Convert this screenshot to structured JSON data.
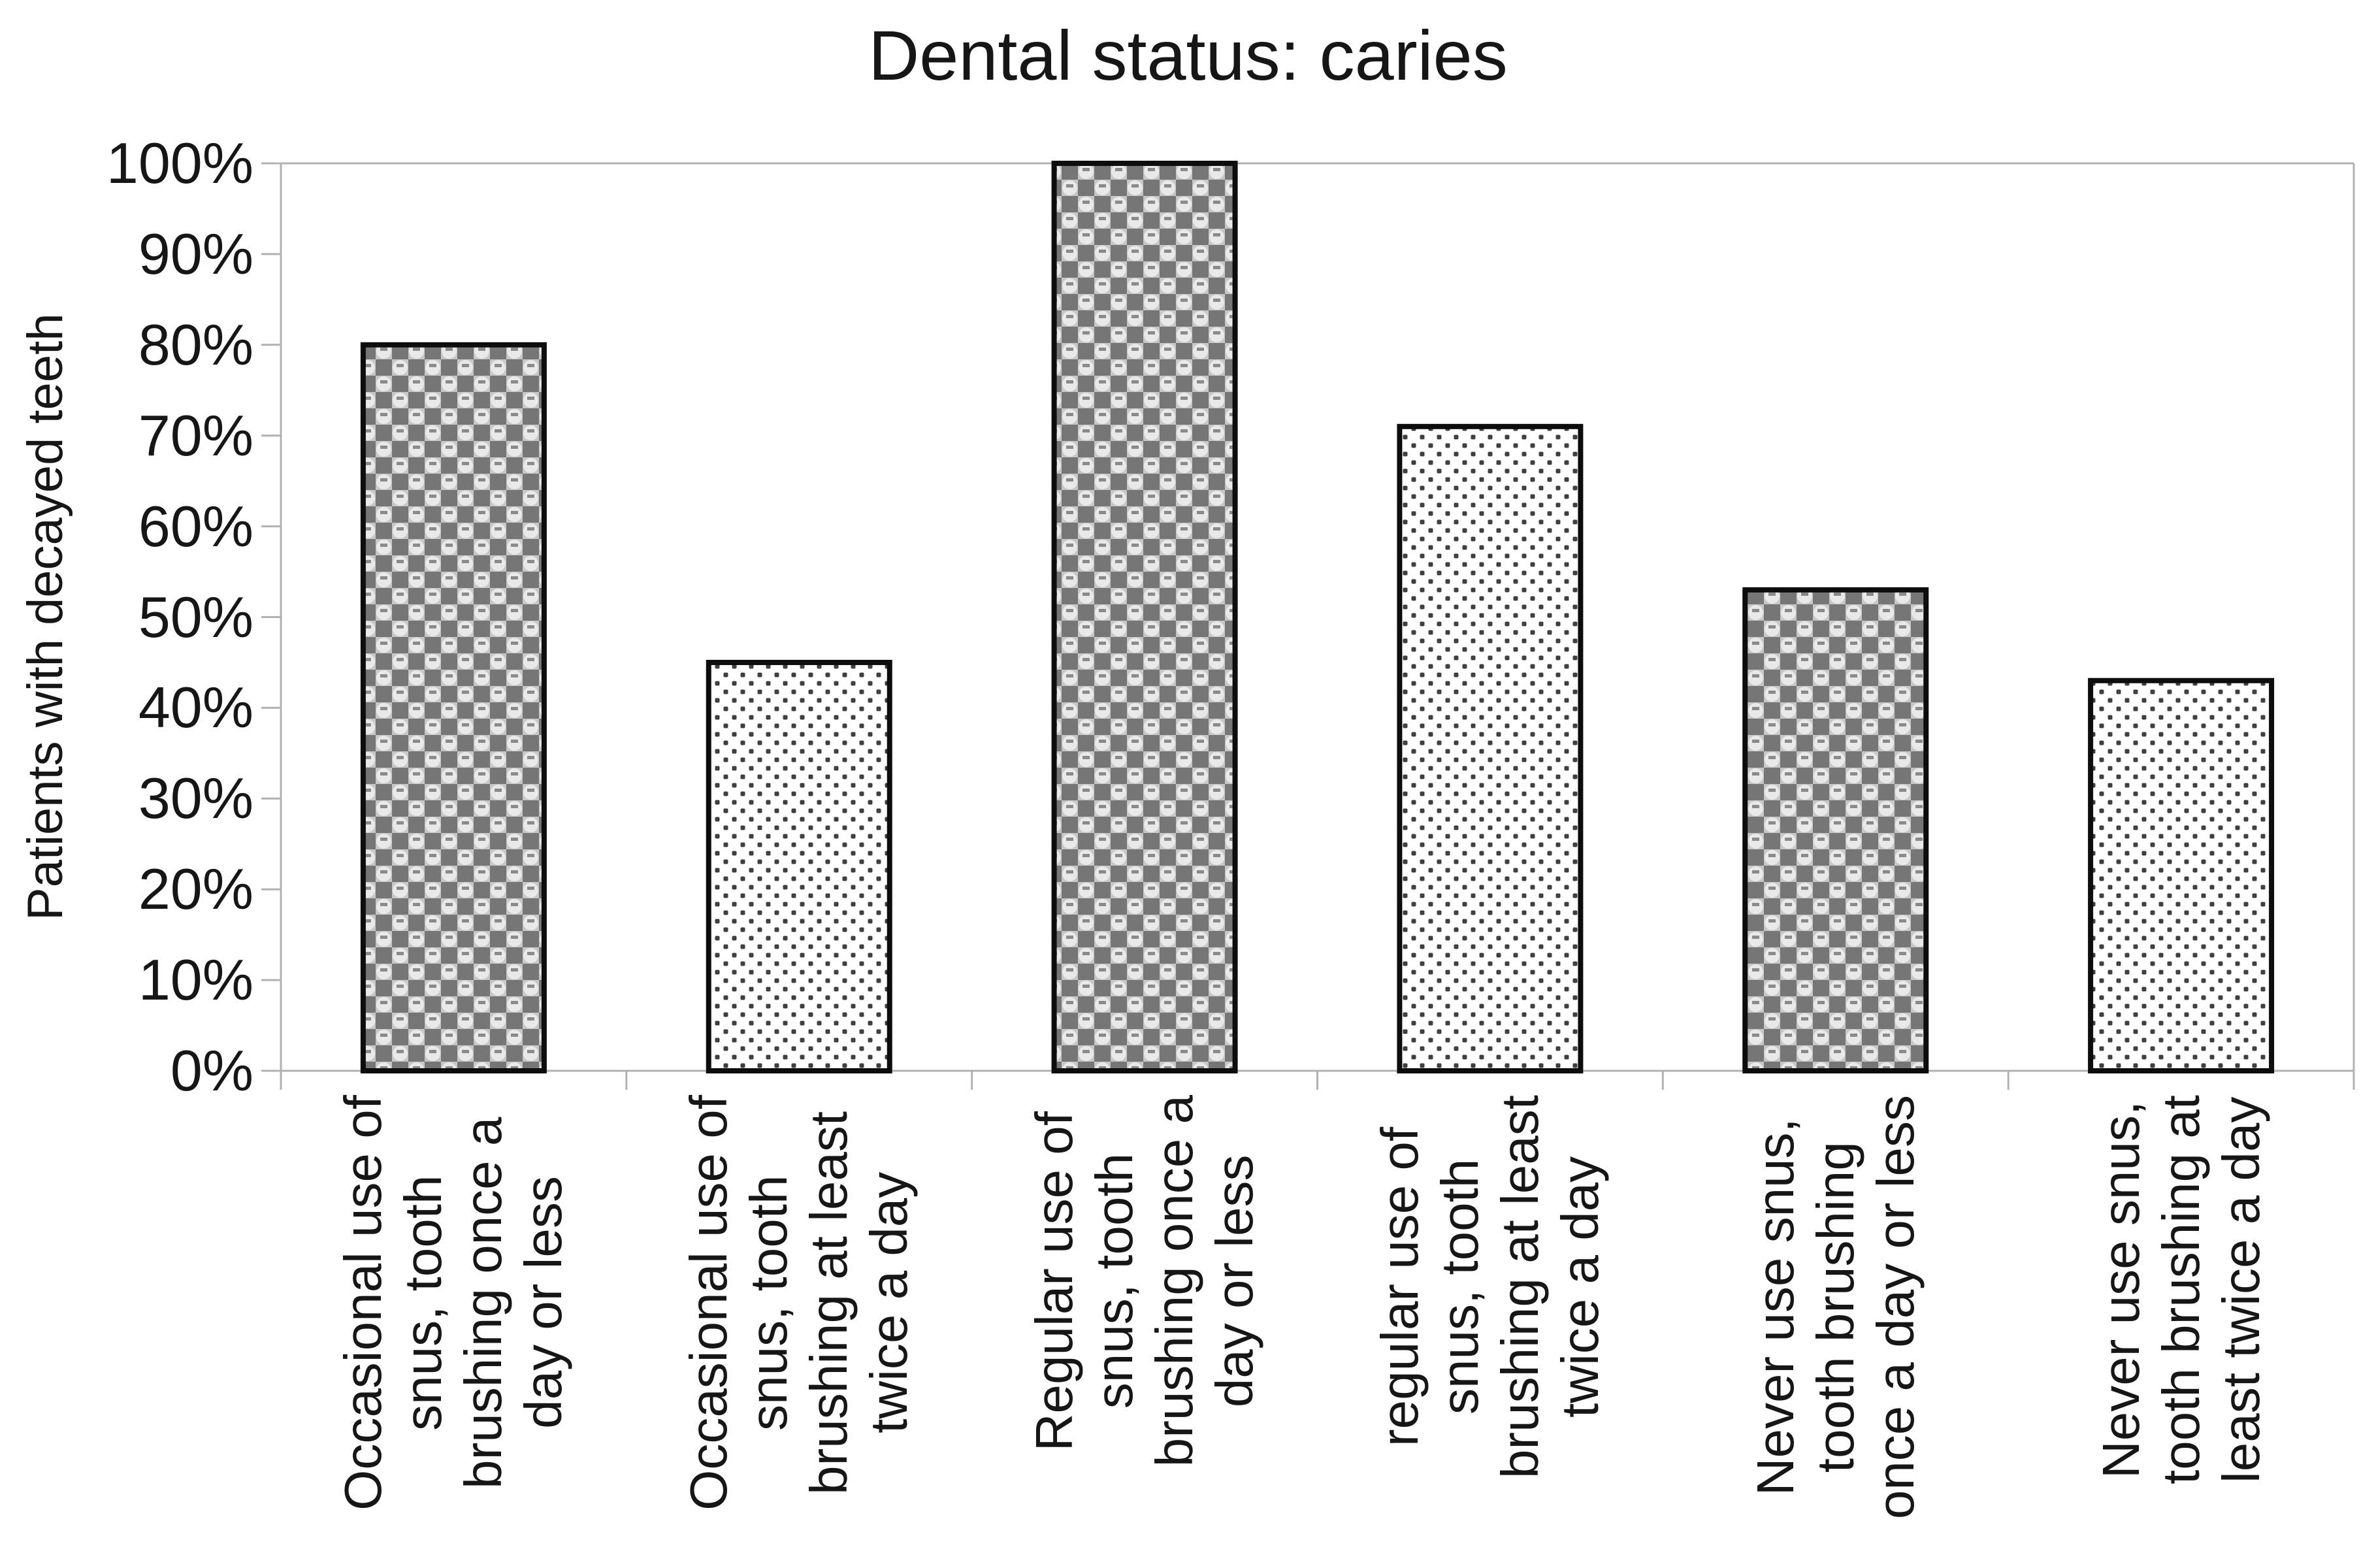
{
  "chart_data": {
    "type": "bar",
    "title": "Dental status: caries",
    "xlabel": "",
    "ylabel": "Patients with decayed teeth",
    "ylim": [
      0,
      100
    ],
    "ytick_step": 10,
    "ytick_labels": [
      "0%",
      "10%",
      "20%",
      "30%",
      "40%",
      "50%",
      "60%",
      "70%",
      "80%",
      "90%",
      "100%"
    ],
    "categories": [
      "Occasional use of snus, tooth brushing once a day or less",
      "Occasional use of snus, tooth brushing at least twice a day",
      "Regular use of snus, tooth brushing once a day or less",
      "regular use of snus, tooth brushing at least twice a day",
      "Never use snus, tooth brushing once a day or less",
      "Never use snus, tooth brushing at least twice a day"
    ],
    "category_lines": [
      [
        "Occasional use of",
        "snus, tooth",
        "brushing once a",
        "day or less"
      ],
      [
        "Occasional use of",
        "snus, tooth",
        "brushing at least",
        "twice a day"
      ],
      [
        "Regular use of",
        "snus, tooth",
        "brushing once a",
        "day or less"
      ],
      [
        "regular use of",
        "snus, tooth",
        "brushing at least",
        "twice a day"
      ],
      [
        "Never use snus,",
        "tooth brushing",
        "once a day or less"
      ],
      [
        "Never use snus,",
        "tooth brushing at",
        "least twice a day"
      ]
    ],
    "values": [
      80,
      45,
      100,
      71,
      53,
      43
    ],
    "bar_patterns": [
      "checker",
      "dots",
      "checker",
      "dots",
      "checker",
      "dots"
    ],
    "grid": false,
    "legend_visible": false,
    "plot_frame": "top and right light-gray border, left and bottom light-gray axes with outside ticks"
  },
  "colors": {
    "background": "#ffffff",
    "text": "#161616",
    "axis": "#b2b2b2",
    "bar_border": "#0d0d0d",
    "checker_dark": "#767676",
    "checker_grid_bg": "#c7c7c7",
    "checker_circle": "#e9e9e9",
    "checker_dash": "#8a8a8a",
    "dot": "#3f3f3f",
    "dot_bg": "#ffffff"
  }
}
